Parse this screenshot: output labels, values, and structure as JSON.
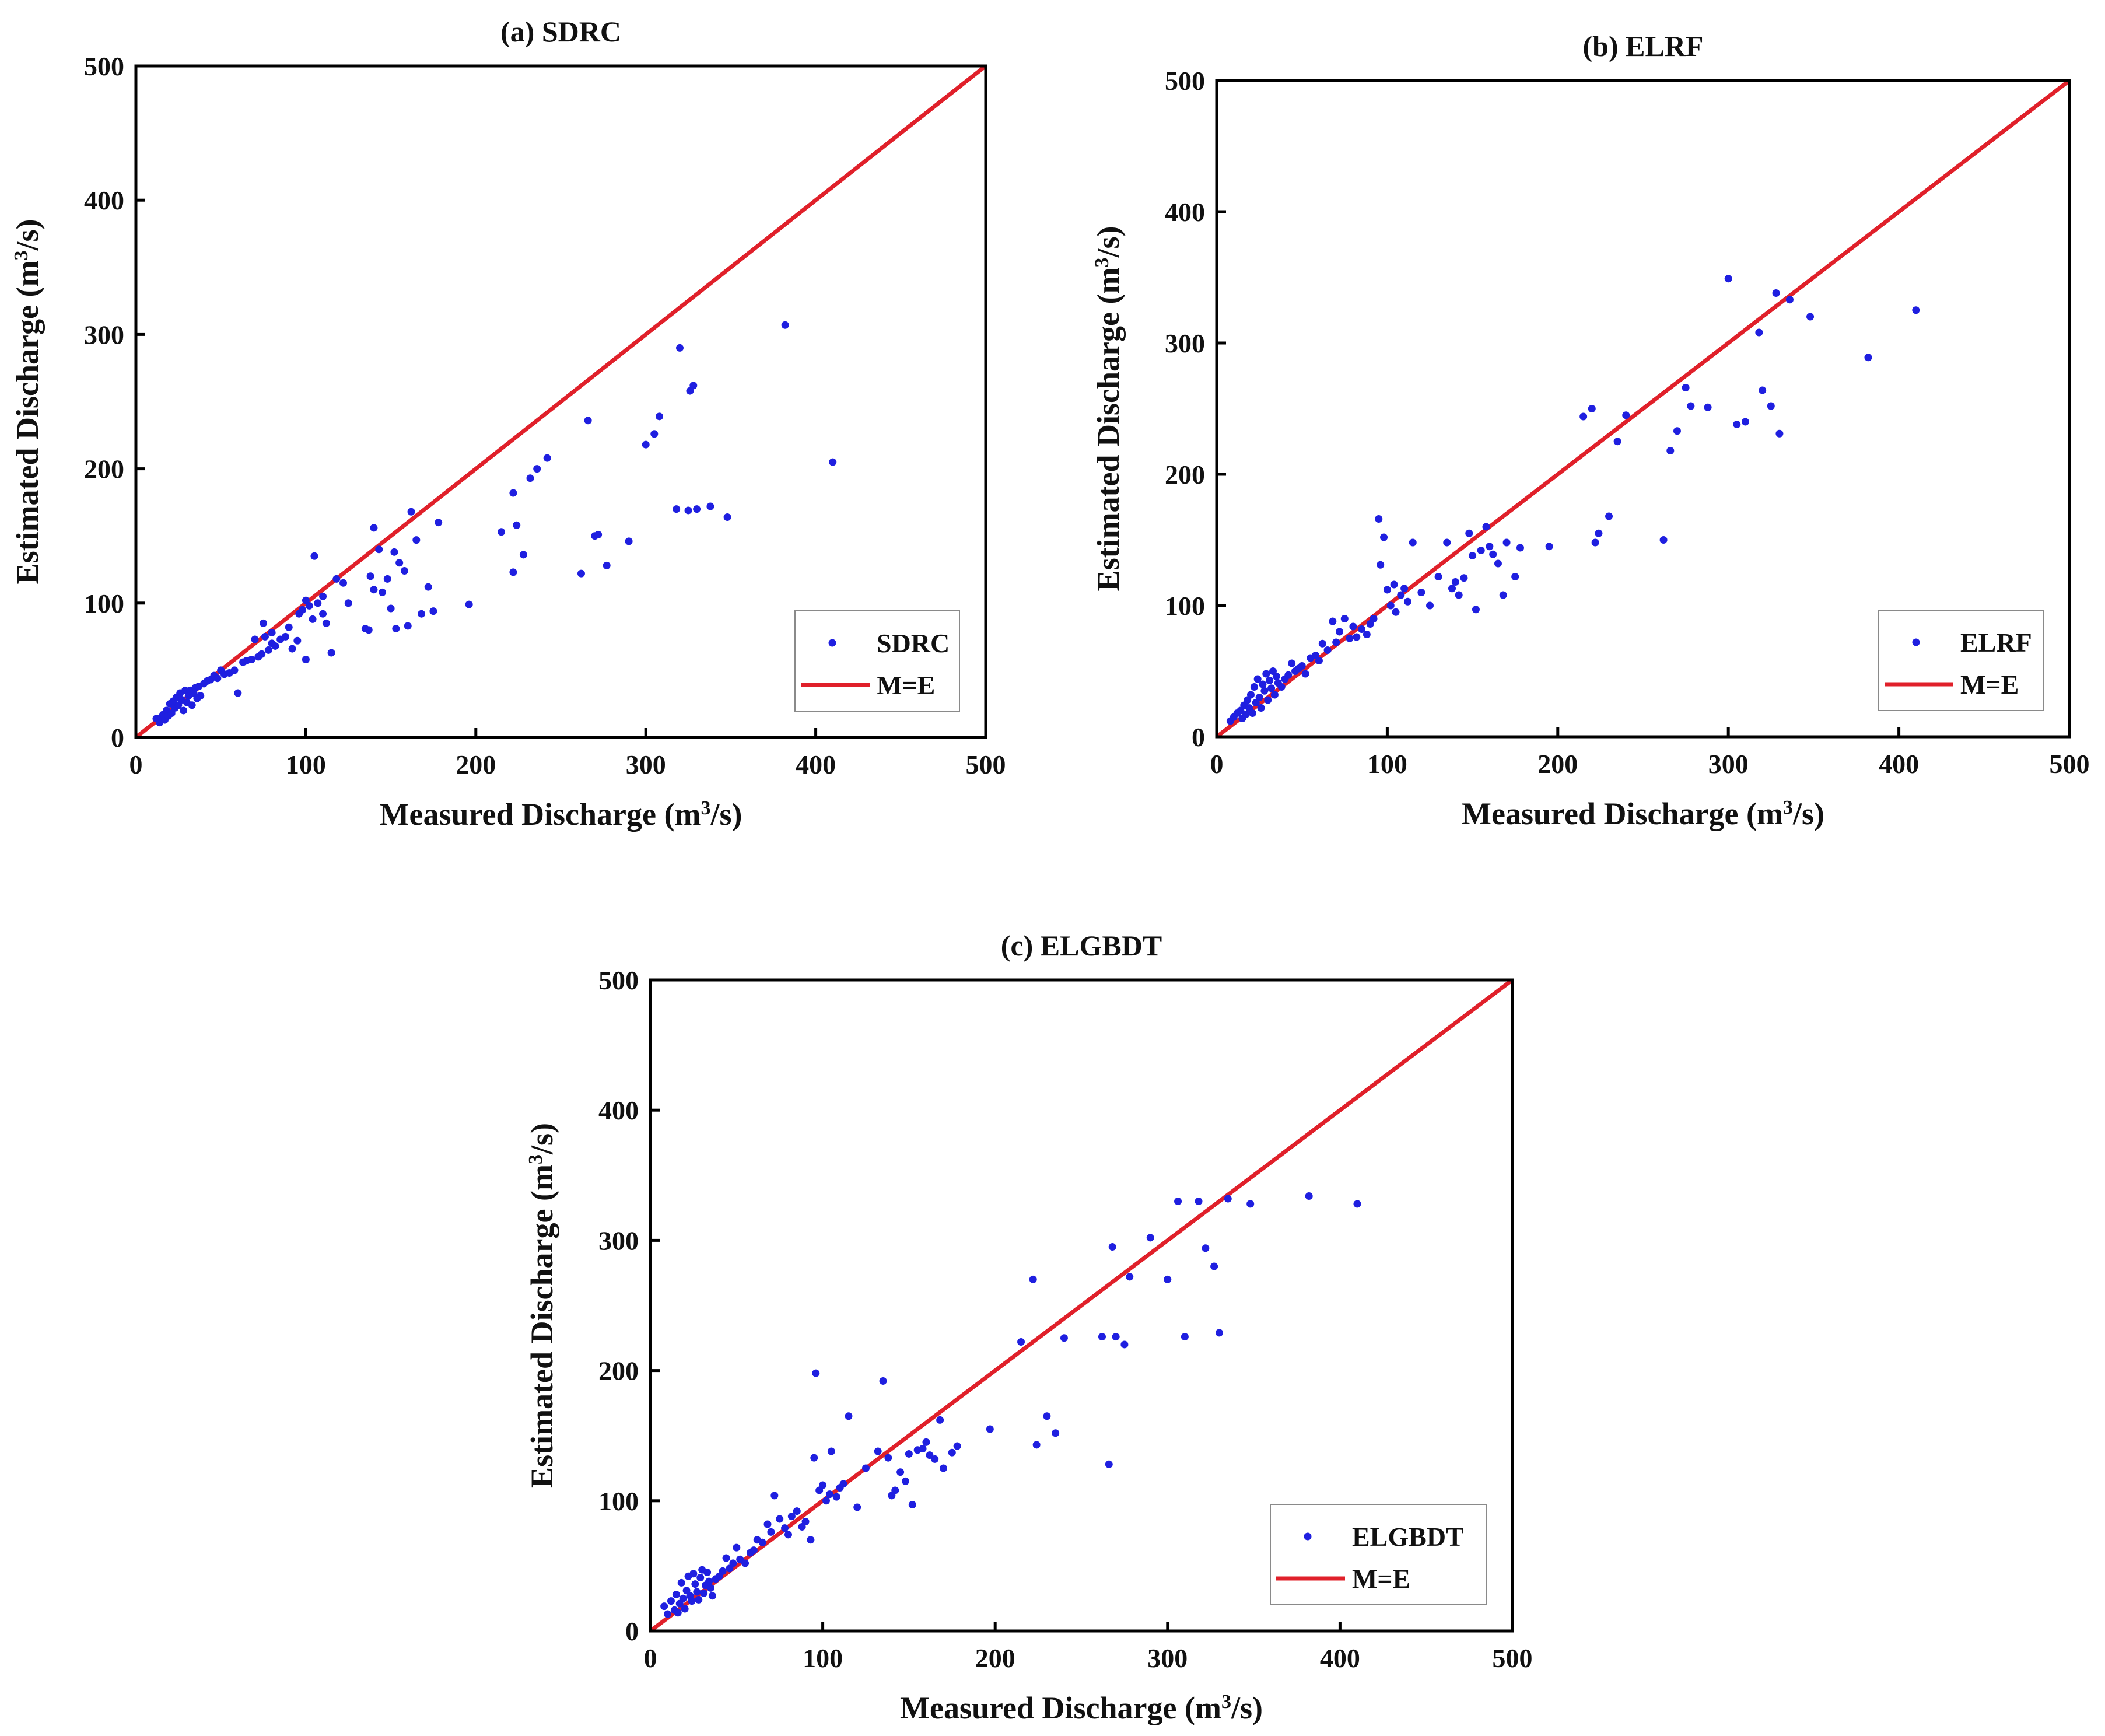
{
  "chart_data": [
    {
      "type": "scatter",
      "title": "(a) SDRC",
      "xlabel": "Measured Discharge (m³/s)",
      "ylabel": "Estimated Discharge (m³/s)",
      "xlim": [
        0,
        500
      ],
      "ylim": [
        0,
        500
      ],
      "xticks": [
        "0",
        "100",
        "200",
        "300",
        "400",
        "500"
      ],
      "yticks": [
        "0",
        "100",
        "200",
        "300",
        "400",
        "500"
      ],
      "legend": [
        "SDRC",
        "M=E"
      ],
      "legend_position": "bottom-right",
      "point_color": "#1f1fe0",
      "line_color": "#e0202a",
      "reference_line": {
        "name": "M=E",
        "x": [
          0,
          500
        ],
        "y": [
          0,
          500
        ]
      },
      "series": [
        {
          "name": "SDRC",
          "x": [
            12,
            14,
            15,
            16,
            17,
            18,
            19,
            20,
            21,
            22,
            23,
            24,
            25,
            26,
            27,
            28,
            29,
            30,
            31,
            32,
            33,
            34,
            35,
            36,
            37,
            38,
            40,
            42,
            44,
            46,
            48,
            50,
            52,
            55,
            58,
            60,
            63,
            65,
            68,
            70,
            72,
            74,
            75,
            76,
            78,
            80,
            80,
            82,
            85,
            88,
            90,
            92,
            95,
            96,
            98,
            100,
            100,
            102,
            104,
            105,
            107,
            110,
            110,
            112,
            115,
            118,
            122,
            125,
            135,
            137,
            138,
            140,
            140,
            143,
            145,
            148,
            150,
            152,
            153,
            155,
            158,
            160,
            162,
            165,
            168,
            172,
            175,
            178,
            196,
            215,
            222,
            222,
            224,
            228,
            232,
            236,
            242,
            262,
            266,
            270,
            272,
            277,
            290,
            300,
            305,
            308,
            318,
            320,
            325,
            326,
            328,
            330,
            338,
            348,
            382,
            410
          ],
          "y": [
            14,
            11,
            15,
            17,
            13,
            20,
            16,
            25,
            18,
            27,
            22,
            30,
            24,
            33,
            28,
            20,
            35,
            26,
            31,
            35,
            24,
            33,
            37,
            29,
            38,
            31,
            40,
            42,
            43,
            46,
            44,
            50,
            47,
            48,
            50,
            33,
            56,
            57,
            58,
            73,
            60,
            62,
            85,
            75,
            65,
            70,
            78,
            68,
            73,
            75,
            82,
            66,
            72,
            92,
            95,
            58,
            102,
            98,
            88,
            135,
            100,
            92,
            105,
            85,
            63,
            118,
            115,
            100,
            81,
            80,
            120,
            156,
            110,
            140,
            108,
            118,
            96,
            138,
            81,
            130,
            124,
            83,
            168,
            147,
            92,
            112,
            94,
            160,
            99,
            153,
            123,
            182,
            158,
            136,
            193,
            200,
            208,
            122,
            236,
            150,
            151,
            128,
            146,
            218,
            226,
            239,
            170,
            290,
            169,
            258,
            262,
            170,
            172,
            164,
            307,
            205
          ]
        }
      ]
    },
    {
      "type": "scatter",
      "title": "(b) ELRF",
      "xlabel": "Measured Discharge (m³/s)",
      "ylabel": "Estimated Discharge (m³/s)",
      "xlim": [
        0,
        500
      ],
      "ylim": [
        0,
        500
      ],
      "xticks": [
        "0",
        "100",
        "200",
        "300",
        "400",
        "500"
      ],
      "yticks": [
        "0",
        "100",
        "200",
        "300",
        "400",
        "500"
      ],
      "legend": [
        "ELRF",
        "M=E"
      ],
      "legend_position": "bottom-right",
      "point_color": "#1f1fe0",
      "line_color": "#e0202a",
      "reference_line": {
        "name": "M=E",
        "x": [
          0,
          500
        ],
        "y": [
          0,
          500
        ]
      },
      "series": [
        {
          "name": "ELRF",
          "x": [
            8,
            10,
            12,
            14,
            15,
            16,
            17,
            18,
            19,
            20,
            21,
            22,
            23,
            24,
            25,
            26,
            27,
            28,
            29,
            30,
            31,
            32,
            33,
            34,
            35,
            36,
            38,
            40,
            42,
            44,
            46,
            48,
            50,
            52,
            55,
            58,
            60,
            62,
            65,
            68,
            70,
            72,
            75,
            78,
            80,
            82,
            85,
            88,
            90,
            92,
            95,
            96,
            98,
            100,
            102,
            104,
            105,
            108,
            110,
            112,
            115,
            120,
            125,
            130,
            135,
            138,
            140,
            142,
            145,
            148,
            150,
            152,
            155,
            158,
            160,
            162,
            165,
            168,
            170,
            175,
            178,
            195,
            215,
            220,
            222,
            224,
            230,
            235,
            240,
            262,
            266,
            270,
            275,
            278,
            288,
            300,
            305,
            310,
            318,
            320,
            325,
            328,
            330,
            336,
            348,
            382,
            410
          ],
          "y": [
            12,
            15,
            18,
            20,
            14,
            24,
            17,
            28,
            22,
            32,
            18,
            38,
            26,
            44,
            30,
            22,
            40,
            35,
            48,
            28,
            43,
            37,
            50,
            32,
            46,
            41,
            38,
            44,
            47,
            56,
            50,
            52,
            54,
            48,
            60,
            62,
            58,
            71,
            66,
            88,
            72,
            80,
            90,
            75,
            84,
            76,
            82,
            78,
            86,
            90,
            166,
            131,
            152,
            112,
            100,
            116,
            95,
            108,
            113,
            103,
            148,
            110,
            100,
            122,
            148,
            113,
            118,
            108,
            121,
            155,
            138,
            97,
            142,
            160,
            145,
            139,
            132,
            108,
            148,
            122,
            144,
            145,
            244,
            250,
            148,
            155,
            168,
            225,
            245,
            150,
            218,
            233,
            266,
            252,
            251,
            349,
            238,
            240,
            308,
            264,
            252,
            338,
            231,
            333,
            320,
            289,
            325
          ]
        }
      ]
    },
    {
      "type": "scatter",
      "title": "(c) ELGBDT",
      "xlabel": "Measured Discharge (m³/s)",
      "ylabel": "Estimated Discharge (m³/s)",
      "xlim": [
        0,
        500
      ],
      "ylim": [
        0,
        500
      ],
      "xticks": [
        "0",
        "100",
        "200",
        "300",
        "400",
        "500"
      ],
      "yticks": [
        "0",
        "100",
        "200",
        "300",
        "400",
        "500"
      ],
      "legend": [
        "ELGBDT",
        "M=E"
      ],
      "legend_position": "bottom-right",
      "point_color": "#1f1fe0",
      "line_color": "#e0202a",
      "reference_line": {
        "name": "M=E",
        "x": [
          0,
          500
        ],
        "y": [
          0,
          500
        ]
      },
      "series": [
        {
          "name": "ELGBDT",
          "x": [
            8,
            10,
            12,
            14,
            15,
            16,
            17,
            18,
            19,
            20,
            21,
            22,
            23,
            24,
            25,
            26,
            27,
            28,
            29,
            30,
            31,
            32,
            33,
            34,
            35,
            36,
            38,
            40,
            42,
            44,
            46,
            48,
            50,
            52,
            55,
            58,
            60,
            62,
            65,
            68,
            70,
            72,
            75,
            78,
            80,
            82,
            85,
            88,
            90,
            93,
            95,
            96,
            98,
            100,
            102,
            104,
            105,
            108,
            110,
            112,
            115,
            120,
            125,
            132,
            135,
            138,
            140,
            142,
            145,
            148,
            150,
            152,
            155,
            158,
            160,
            162,
            165,
            168,
            170,
            175,
            178,
            197,
            215,
            222,
            224,
            230,
            235,
            240,
            262,
            266,
            268,
            270,
            275,
            278,
            290,
            300,
            306,
            310,
            318,
            322,
            327,
            330,
            335,
            348,
            382,
            410
          ],
          "y": [
            19,
            13,
            23,
            16,
            28,
            14,
            21,
            37,
            25,
            17,
            31,
            42,
            27,
            23,
            44,
            36,
            30,
            24,
            41,
            47,
            29,
            35,
            45,
            38,
            33,
            27,
            40,
            42,
            46,
            56,
            48,
            52,
            64,
            55,
            52,
            60,
            62,
            70,
            68,
            82,
            76,
            104,
            86,
            79,
            74,
            88,
            92,
            80,
            84,
            70,
            133,
            198,
            108,
            112,
            100,
            105,
            138,
            103,
            110,
            113,
            165,
            95,
            125,
            138,
            192,
            133,
            104,
            108,
            122,
            115,
            136,
            97,
            139,
            140,
            145,
            135,
            132,
            162,
            125,
            137,
            142,
            155,
            222,
            270,
            143,
            165,
            152,
            225,
            226,
            128,
            295,
            226,
            220,
            272,
            302,
            270,
            330,
            226,
            330,
            294,
            280,
            229,
            332,
            328,
            334,
            328
          ]
        }
      ]
    }
  ]
}
